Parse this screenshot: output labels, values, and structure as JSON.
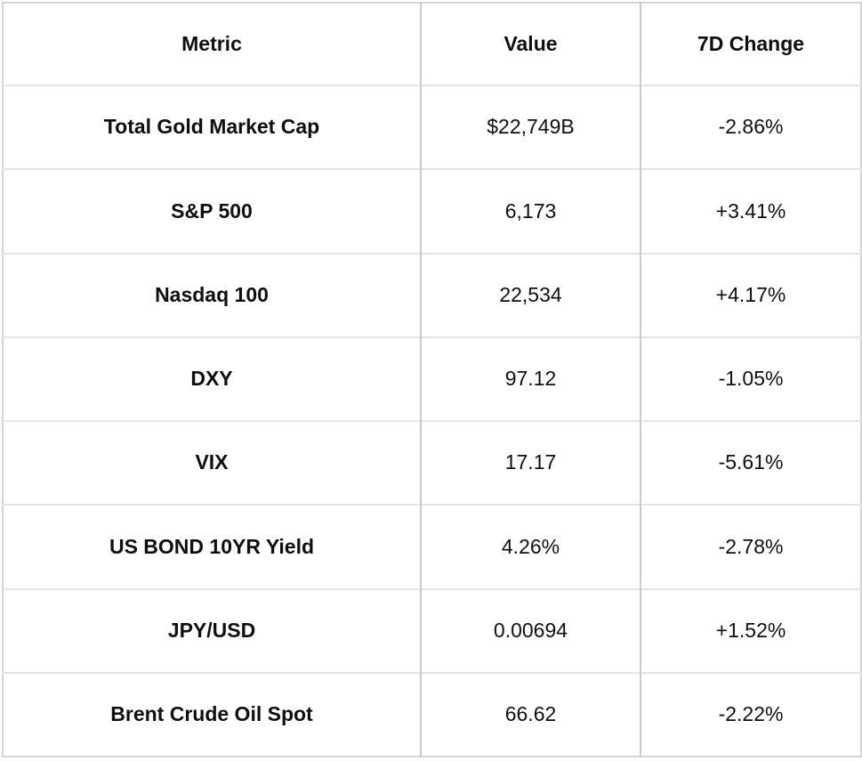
{
  "chart_data": {
    "type": "table",
    "columns": [
      "Metric",
      "Value",
      "7D Change"
    ],
    "rows": [
      {
        "metric": "Total Gold Market Cap",
        "value": "$22,749B",
        "change": "-2.86%"
      },
      {
        "metric": "S&P 500",
        "value": "6,173",
        "change": "+3.41%"
      },
      {
        "metric": "Nasdaq 100",
        "value": "22,534",
        "change": "+4.17%"
      },
      {
        "metric": "DXY",
        "value": "97.12",
        "change": "-1.05%"
      },
      {
        "metric": "VIX",
        "value": "17.17",
        "change": "-5.61%"
      },
      {
        "metric": "US BOND 10YR Yield",
        "value": "4.26%",
        "change": "-2.78%"
      },
      {
        "metric": "JPY/USD",
        "value": "0.00694",
        "change": "+1.52%"
      },
      {
        "metric": "Brent Crude Oil Spot",
        "value": "66.62",
        "change": "-2.22%"
      }
    ],
    "colors": {
      "text": "#0f0f0f",
      "background": "#ffffff",
      "outer_border": "#d4d4d4",
      "row_border": "#e3e3e3",
      "column_border": "#c9c9c9"
    }
  }
}
